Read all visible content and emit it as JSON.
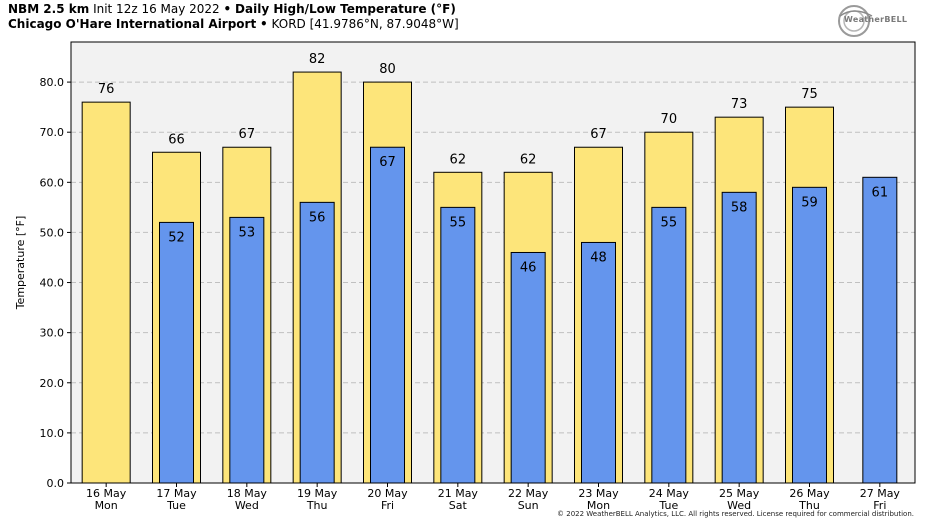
{
  "header": {
    "model": "NBM 2.5 km",
    "init": "Init 12z 16 May 2022",
    "bullet": "•",
    "product": "Daily High/Low Temperature (°F)",
    "station": "Chicago O'Hare International Airport",
    "station_code": "KORD [41.9786°N, 87.9048°W]"
  },
  "logo": {
    "text": "WeatherBELL"
  },
  "copyright": "© 2022 WeatherBELL Analytics, LLC. All rights reserved. License required for commercial distribution.",
  "colors": {
    "high": "#fde57a",
    "low": "#6495ed",
    "plot_bg": "#f2f2f2",
    "grid": "#c0c0c0"
  },
  "chart_data": {
    "type": "bar",
    "title": "Daily High/Low Temperature (°F)",
    "ylabel": "Temperature [°F]",
    "xlabel": "",
    "ylim": [
      0,
      88
    ],
    "yticks": [
      "0.0",
      "10.0",
      "20.0",
      "30.0",
      "40.0",
      "50.0",
      "60.0",
      "70.0",
      "80.0"
    ],
    "grid": true,
    "categories": [
      [
        "16 May",
        "Mon"
      ],
      [
        "17 May",
        "Tue"
      ],
      [
        "18 May",
        "Wed"
      ],
      [
        "19 May",
        "Thu"
      ],
      [
        "20 May",
        "Fri"
      ],
      [
        "21 May",
        "Sat"
      ],
      [
        "22 May",
        "Sun"
      ],
      [
        "23 May",
        "Mon"
      ],
      [
        "24 May",
        "Tue"
      ],
      [
        "25 May",
        "Wed"
      ],
      [
        "26 May",
        "Thu"
      ],
      [
        "27 May",
        "Fri"
      ]
    ],
    "series": [
      {
        "name": "High",
        "values": [
          76,
          66,
          67,
          82,
          80,
          62,
          62,
          67,
          70,
          73,
          75,
          null
        ],
        "labels": [
          "76",
          "66",
          "67",
          "82",
          "80",
          "62",
          "62",
          "67",
          "70",
          "73",
          "75",
          ""
        ]
      },
      {
        "name": "Low",
        "values": [
          null,
          52,
          53,
          56,
          67,
          55,
          46,
          48,
          55,
          58,
          59,
          61
        ],
        "labels": [
          "",
          "52",
          "53",
          "56",
          "67",
          "55",
          "46",
          "48",
          "55",
          "58",
          "59",
          "61"
        ]
      }
    ]
  }
}
